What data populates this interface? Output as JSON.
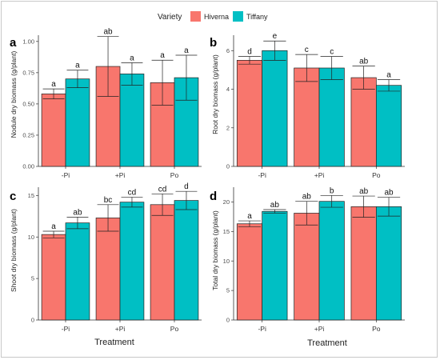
{
  "legend": {
    "title": "Variety",
    "items": [
      {
        "name": "Hiverna",
        "color": "#F8766D"
      },
      {
        "name": "Tiffany",
        "color": "#00BFC4"
      }
    ]
  },
  "chart_data": [
    {
      "type": "bar",
      "panel": "a",
      "categories": [
        "-Pi",
        "+Pi",
        "Po"
      ],
      "xlabel": "",
      "ylabel": "Nodule dry biomass (g/plant)",
      "ylim": [
        0,
        1.05
      ],
      "yticks": [
        "0.00",
        "0.25",
        "0.50",
        "0.75",
        "1.00"
      ],
      "ytick_values": [
        0,
        0.25,
        0.5,
        0.75,
        1.0
      ],
      "series": [
        {
          "name": "Hiverna",
          "values": [
            0.58,
            0.8,
            0.67
          ],
          "errors": [
            0.04,
            0.24,
            0.18
          ],
          "letters": [
            "a",
            "ab",
            "a"
          ]
        },
        {
          "name": "Tiffany",
          "values": [
            0.7,
            0.74,
            0.71
          ],
          "errors": [
            0.07,
            0.09,
            0.18
          ],
          "letters": [
            "a",
            "a",
            "a"
          ]
        }
      ]
    },
    {
      "type": "bar",
      "panel": "b",
      "categories": [
        "-Pi",
        "+Pi",
        "Po"
      ],
      "xlabel": "",
      "ylabel": "Root dry biomass (g/plant)",
      "ylim": [
        0,
        6.8
      ],
      "yticks": [
        "0",
        "2",
        "4",
        "6"
      ],
      "ytick_values": [
        0,
        2,
        4,
        6
      ],
      "series": [
        {
          "name": "Hiverna",
          "values": [
            5.5,
            5.1,
            4.6
          ],
          "errors": [
            0.2,
            0.7,
            0.6
          ],
          "letters": [
            "d",
            "c",
            "ab"
          ]
        },
        {
          "name": "Tiffany",
          "values": [
            6.0,
            5.1,
            4.2
          ],
          "errors": [
            0.5,
            0.6,
            0.3
          ],
          "letters": [
            "e",
            "c",
            "a"
          ]
        }
      ]
    },
    {
      "type": "bar",
      "panel": "c",
      "categories": [
        "-Pi",
        "+Pi",
        "Po"
      ],
      "xlabel": "Treatment",
      "ylabel": "Shoot dry biomass (g/plant)",
      "ylim": [
        0,
        16
      ],
      "yticks": [
        "0",
        "5",
        "10",
        "15"
      ],
      "ytick_values": [
        0,
        5,
        10,
        15
      ],
      "series": [
        {
          "name": "Hiverna",
          "values": [
            10.3,
            12.3,
            13.9
          ],
          "errors": [
            0.4,
            1.6,
            1.3
          ],
          "letters": [
            "a",
            "bc",
            "cd"
          ]
        },
        {
          "name": "Tiffany",
          "values": [
            11.7,
            14.2,
            14.4
          ],
          "errors": [
            0.7,
            0.6,
            1.1
          ],
          "letters": [
            "ab",
            "cd",
            "d"
          ]
        }
      ]
    },
    {
      "type": "bar",
      "panel": "d",
      "categories": [
        "-Pi",
        "+Pi",
        "Po"
      ],
      "xlabel": "Treatment",
      "ylabel": "Total dry biomass (g/plant)",
      "ylim": [
        0,
        22.5
      ],
      "yticks": [
        "0",
        "5",
        "10",
        "15",
        "20"
      ],
      "ytick_values": [
        0,
        5,
        10,
        15,
        20
      ],
      "series": [
        {
          "name": "Hiverna",
          "values": [
            16.3,
            18.1,
            19.2
          ],
          "errors": [
            0.5,
            2.0,
            1.8
          ],
          "letters": [
            "a",
            "ab",
            "ab"
          ]
        },
        {
          "name": "Tiffany",
          "values": [
            18.4,
            20.1,
            19.2
          ],
          "errors": [
            0.3,
            1.0,
            1.6
          ],
          "letters": [
            "ab",
            "b",
            "ab"
          ]
        }
      ]
    }
  ]
}
